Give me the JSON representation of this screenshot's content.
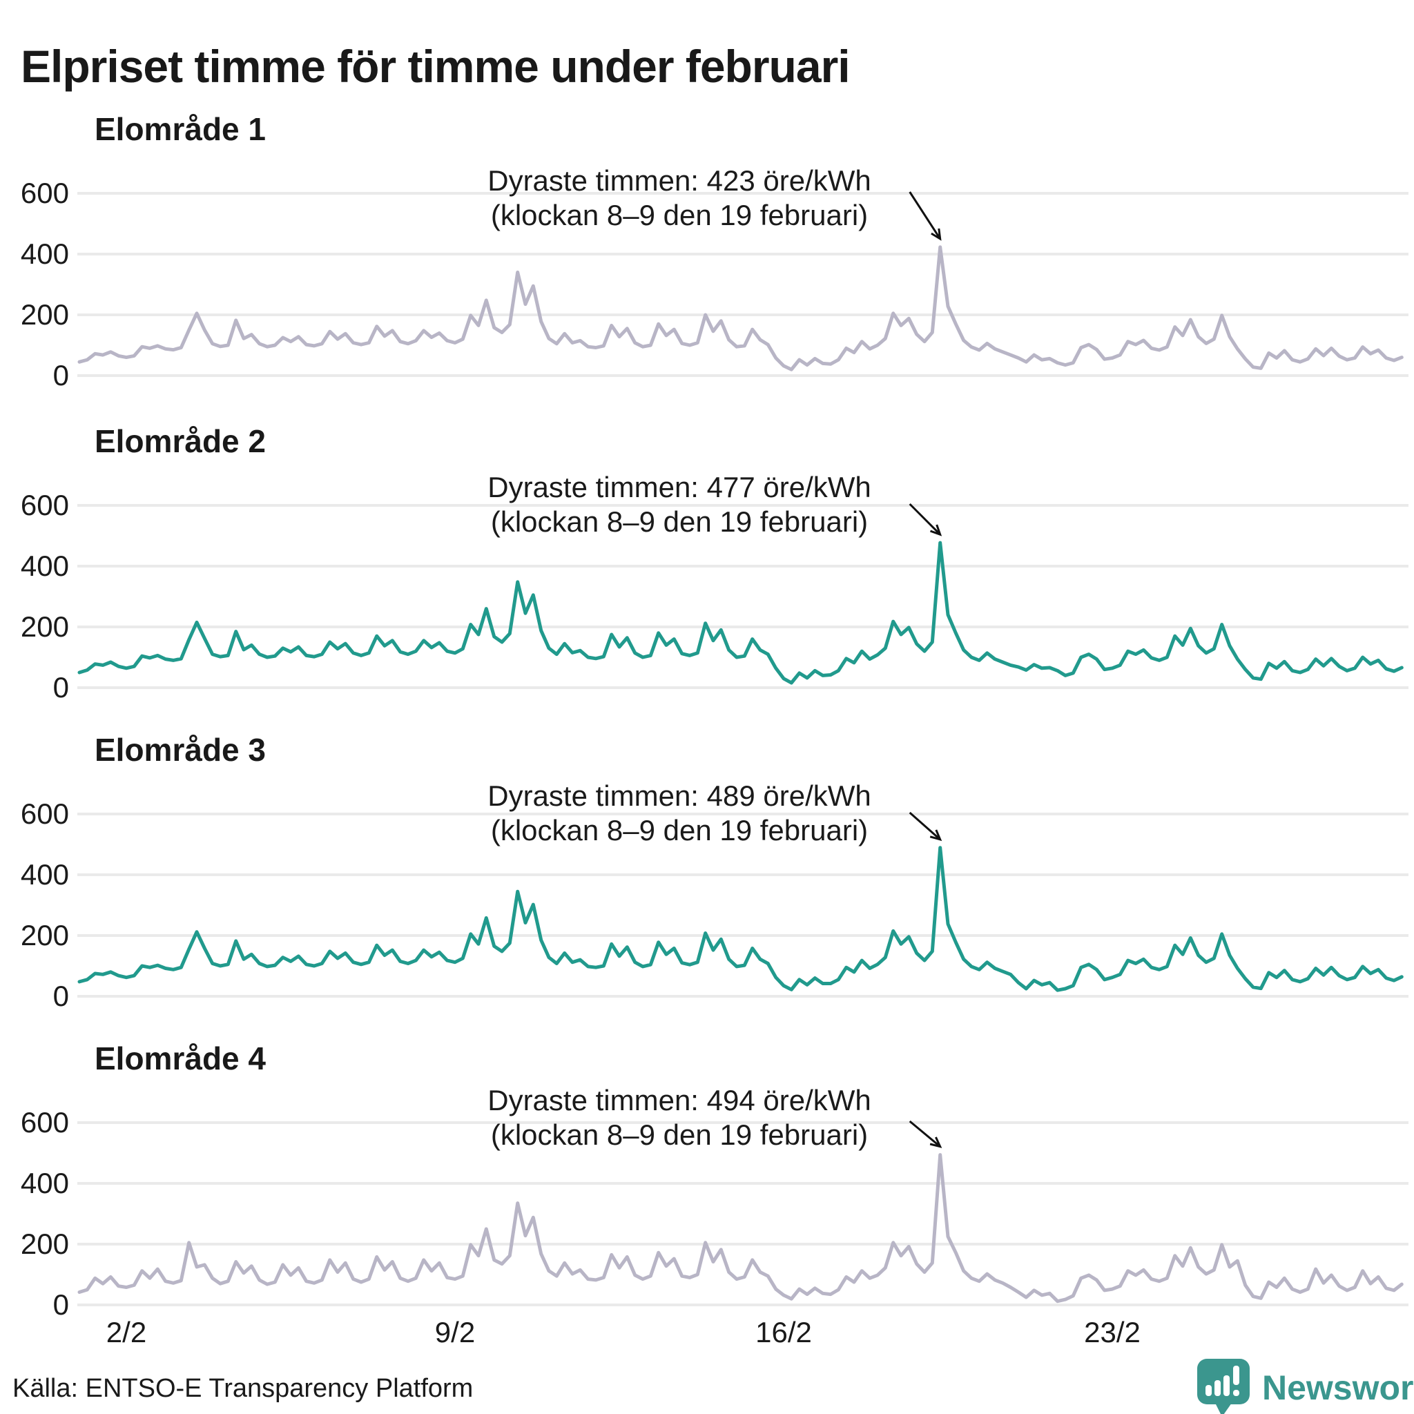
{
  "title": "Elpriset timme för timme under februari",
  "source": "Källa: ENTSO-E Transparency Platform",
  "logo": {
    "text": "Newsworthy",
    "icon": "newsworthy-speech-bubble-bar-chart-icon",
    "color": "#3b968e"
  },
  "axes": {
    "y_ticks": [
      "600",
      "400",
      "200",
      "0"
    ],
    "x_ticks": [
      "2/2",
      "9/2",
      "16/2",
      "23/2"
    ],
    "x_tick_days": [
      1,
      8,
      15,
      22
    ],
    "ylim": [
      0,
      600
    ],
    "unit": "öre/kWh"
  },
  "colors": {
    "line_gray": "#b8b5c6",
    "line_teal": "#219a8d",
    "gridline": "#eaeaea",
    "text": "#1a1a1a"
  },
  "chart_data": [
    {
      "type": "line",
      "title": "Elområde 1",
      "annotation_line1": "Dyraste timmen: 423 öre/kWh",
      "annotation_line2": "(klockan 8–9 den 19 februari)",
      "max_value": 423,
      "unit": "öre/kWh",
      "color": "#b8b5c6",
      "x_start": "1/2",
      "x_end": "29/2",
      "points_per_day": 6,
      "ylim": [
        0,
        600
      ],
      "values": [
        45,
        52,
        72,
        68,
        78,
        65,
        60,
        65,
        95,
        90,
        98,
        88,
        85,
        92,
        150,
        205,
        150,
        105,
        96,
        100,
        182,
        122,
        135,
        105,
        95,
        100,
        125,
        112,
        128,
        102,
        98,
        105,
        145,
        120,
        138,
        108,
        102,
        108,
        162,
        130,
        148,
        112,
        105,
        115,
        148,
        126,
        140,
        115,
        108,
        120,
        198,
        165,
        248,
        158,
        142,
        168,
        340,
        235,
        295,
        178,
        122,
        105,
        138,
        108,
        115,
        95,
        92,
        98,
        165,
        128,
        155,
        108,
        95,
        100,
        170,
        132,
        152,
        106,
        100,
        108,
        200,
        146,
        180,
        118,
        95,
        98,
        152,
        118,
        102,
        58,
        32,
        20,
        52,
        35,
        56,
        40,
        38,
        52,
        90,
        76,
        112,
        88,
        100,
        122,
        205,
        165,
        188,
        136,
        112,
        142,
        423,
        228,
        170,
        116,
        94,
        84,
        106,
        88,
        78,
        68,
        58,
        45,
        68,
        52,
        56,
        42,
        35,
        42,
        92,
        102,
        86,
        54,
        58,
        68,
        112,
        102,
        116,
        90,
        84,
        94,
        160,
        132,
        184,
        128,
        106,
        120,
        198,
        128,
        88,
        55,
        28,
        24,
        74,
        58,
        82,
        52,
        45,
        55,
        88,
        66,
        90,
        64,
        52,
        58,
        94,
        72,
        84,
        58,
        50,
        60
      ]
    },
    {
      "type": "line",
      "title": "Elområde 2",
      "annotation_line1": "Dyraste timmen: 477 öre/kWh",
      "annotation_line2": "(klockan 8–9 den 19 februari)",
      "max_value": 477,
      "unit": "öre/kWh",
      "color": "#219a8d",
      "x_start": "1/2",
      "x_end": "29/2",
      "points_per_day": 6,
      "ylim": [
        0,
        600
      ],
      "values": [
        50,
        58,
        78,
        74,
        84,
        70,
        64,
        70,
        104,
        98,
        106,
        94,
        90,
        95,
        158,
        215,
        162,
        110,
        102,
        106,
        185,
        125,
        140,
        110,
        100,
        104,
        130,
        118,
        134,
        106,
        102,
        110,
        150,
        128,
        145,
        114,
        106,
        114,
        170,
        138,
        155,
        118,
        110,
        120,
        155,
        132,
        148,
        120,
        114,
        128,
        208,
        175,
        260,
        168,
        150,
        178,
        348,
        245,
        305,
        188,
        130,
        110,
        145,
        115,
        122,
        100,
        96,
        102,
        175,
        134,
        164,
        114,
        100,
        106,
        180,
        140,
        160,
        112,
        106,
        114,
        212,
        155,
        190,
        124,
        100,
        104,
        160,
        124,
        110,
        64,
        30,
        16,
        48,
        32,
        56,
        40,
        42,
        56,
        96,
        82,
        120,
        94,
        108,
        130,
        218,
        175,
        198,
        144,
        120,
        150,
        477,
        240,
        180,
        124,
        100,
        90,
        114,
        94,
        84,
        74,
        68,
        58,
        76,
        64,
        66,
        56,
        40,
        48,
        100,
        110,
        94,
        60,
        64,
        74,
        120,
        110,
        124,
        98,
        90,
        100,
        170,
        140,
        195,
        138,
        114,
        128,
        208,
        138,
        94,
        60,
        32,
        28,
        80,
        64,
        86,
        56,
        50,
        60,
        94,
        72,
        96,
        70,
        56,
        64,
        100,
        78,
        90,
        62,
        54,
        66
      ]
    },
    {
      "type": "line",
      "title": "Elområde 3",
      "annotation_line1": "Dyraste timmen: 489 öre/kWh",
      "annotation_line2": "(klockan 8–9 den 19 februari)",
      "max_value": 489,
      "unit": "öre/kWh",
      "color": "#219a8d",
      "x_start": "1/2",
      "x_end": "29/2",
      "points_per_day": 6,
      "ylim": [
        0,
        600
      ],
      "values": [
        48,
        55,
        75,
        72,
        80,
        68,
        62,
        68,
        100,
        95,
        102,
        92,
        88,
        95,
        155,
        212,
        158,
        108,
        100,
        105,
        182,
        122,
        138,
        108,
        98,
        102,
        128,
        115,
        132,
        105,
        100,
        108,
        148,
        125,
        142,
        112,
        105,
        112,
        168,
        135,
        152,
        115,
        108,
        118,
        152,
        130,
        145,
        118,
        112,
        125,
        205,
        172,
        258,
        165,
        148,
        175,
        345,
        242,
        302,
        185,
        128,
        108,
        142,
        112,
        120,
        98,
        95,
        100,
        172,
        132,
        162,
        112,
        98,
        104,
        178,
        138,
        158,
        110,
        104,
        112,
        208,
        152,
        188,
        122,
        98,
        102,
        158,
        122,
        108,
        62,
        35,
        22,
        55,
        38,
        60,
        42,
        42,
        55,
        95,
        80,
        118,
        92,
        105,
        128,
        215,
        172,
        196,
        142,
        118,
        148,
        489,
        238,
        178,
        122,
        98,
        88,
        112,
        92,
        82,
        72,
        45,
        25,
        52,
        38,
        45,
        20,
        25,
        35,
        95,
        105,
        88,
        55,
        62,
        72,
        118,
        108,
        122,
        95,
        88,
        98,
        168,
        138,
        192,
        135,
        112,
        125,
        205,
        135,
        92,
        58,
        30,
        26,
        78,
        62,
        85,
        55,
        48,
        58,
        92,
        70,
        95,
        68,
        55,
        62,
        98,
        75,
        88,
        60,
        52,
        64
      ]
    },
    {
      "type": "line",
      "title": "Elområde 4",
      "annotation_line1": "Dyraste timmen: 494 öre/kWh",
      "annotation_line2": "(klockan 8–9 den 19 februari)",
      "max_value": 494,
      "unit": "öre/kWh",
      "color": "#b8b5c6",
      "x_start": "1/2",
      "x_end": "29/2",
      "points_per_day": 6,
      "ylim": [
        0,
        600
      ],
      "values": [
        42,
        50,
        88,
        70,
        92,
        62,
        58,
        65,
        112,
        88,
        118,
        78,
        72,
        80,
        205,
        125,
        132,
        88,
        70,
        78,
        142,
        105,
        128,
        82,
        68,
        75,
        132,
        98,
        122,
        78,
        72,
        82,
        148,
        108,
        138,
        85,
        75,
        85,
        158,
        115,
        142,
        88,
        78,
        88,
        148,
        112,
        138,
        90,
        85,
        95,
        198,
        162,
        250,
        148,
        135,
        162,
        335,
        228,
        288,
        168,
        112,
        95,
        138,
        102,
        115,
        85,
        82,
        90,
        165,
        122,
        158,
        98,
        85,
        95,
        172,
        128,
        152,
        95,
        90,
        100,
        205,
        142,
        182,
        108,
        85,
        92,
        148,
        108,
        95,
        52,
        32,
        20,
        52,
        35,
        55,
        38,
        35,
        50,
        92,
        75,
        112,
        88,
        98,
        122,
        205,
        162,
        192,
        135,
        108,
        138,
        494,
        225,
        172,
        112,
        88,
        78,
        102,
        82,
        72,
        58,
        42,
        25,
        48,
        32,
        38,
        12,
        18,
        30,
        88,
        98,
        82,
        48,
        52,
        62,
        112,
        98,
        115,
        85,
        78,
        88,
        162,
        128,
        188,
        125,
        102,
        115,
        198,
        125,
        145,
        65,
        28,
        22,
        75,
        58,
        88,
        52,
        42,
        52,
        118,
        72,
        98,
        62,
        48,
        58,
        112,
        70,
        92,
        55,
        48,
        68
      ]
    }
  ]
}
